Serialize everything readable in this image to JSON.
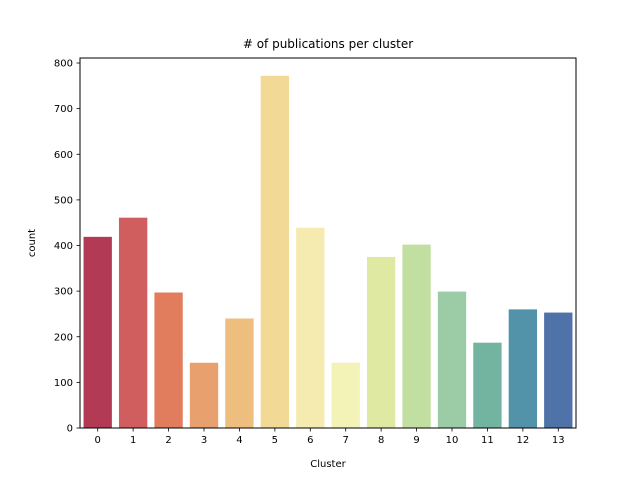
{
  "chart_data": {
    "type": "bar",
    "title": "# of publications per cluster",
    "xlabel": "Cluster",
    "ylabel": "count",
    "categories": [
      "0",
      "1",
      "2",
      "3",
      "4",
      "5",
      "6",
      "7",
      "8",
      "9",
      "10",
      "11",
      "12",
      "13"
    ],
    "values": [
      419,
      461,
      297,
      143,
      240,
      772,
      439,
      143,
      375,
      402,
      299,
      187,
      260,
      253
    ],
    "ylim": [
      0,
      811
    ],
    "yticks": [
      0,
      100,
      200,
      300,
      400,
      500,
      600,
      700,
      800
    ],
    "colors": [
      "#b23a55",
      "#d15e5e",
      "#e17d5d",
      "#e8a06f",
      "#eebe7e",
      "#f2d996",
      "#f5ebb0",
      "#f3f3b8",
      "#dfe9a2",
      "#c1dfa1",
      "#9ccca6",
      "#72b4a0",
      "#5293a9",
      "#4f72a9"
    ],
    "grid": false,
    "legend": "none"
  }
}
